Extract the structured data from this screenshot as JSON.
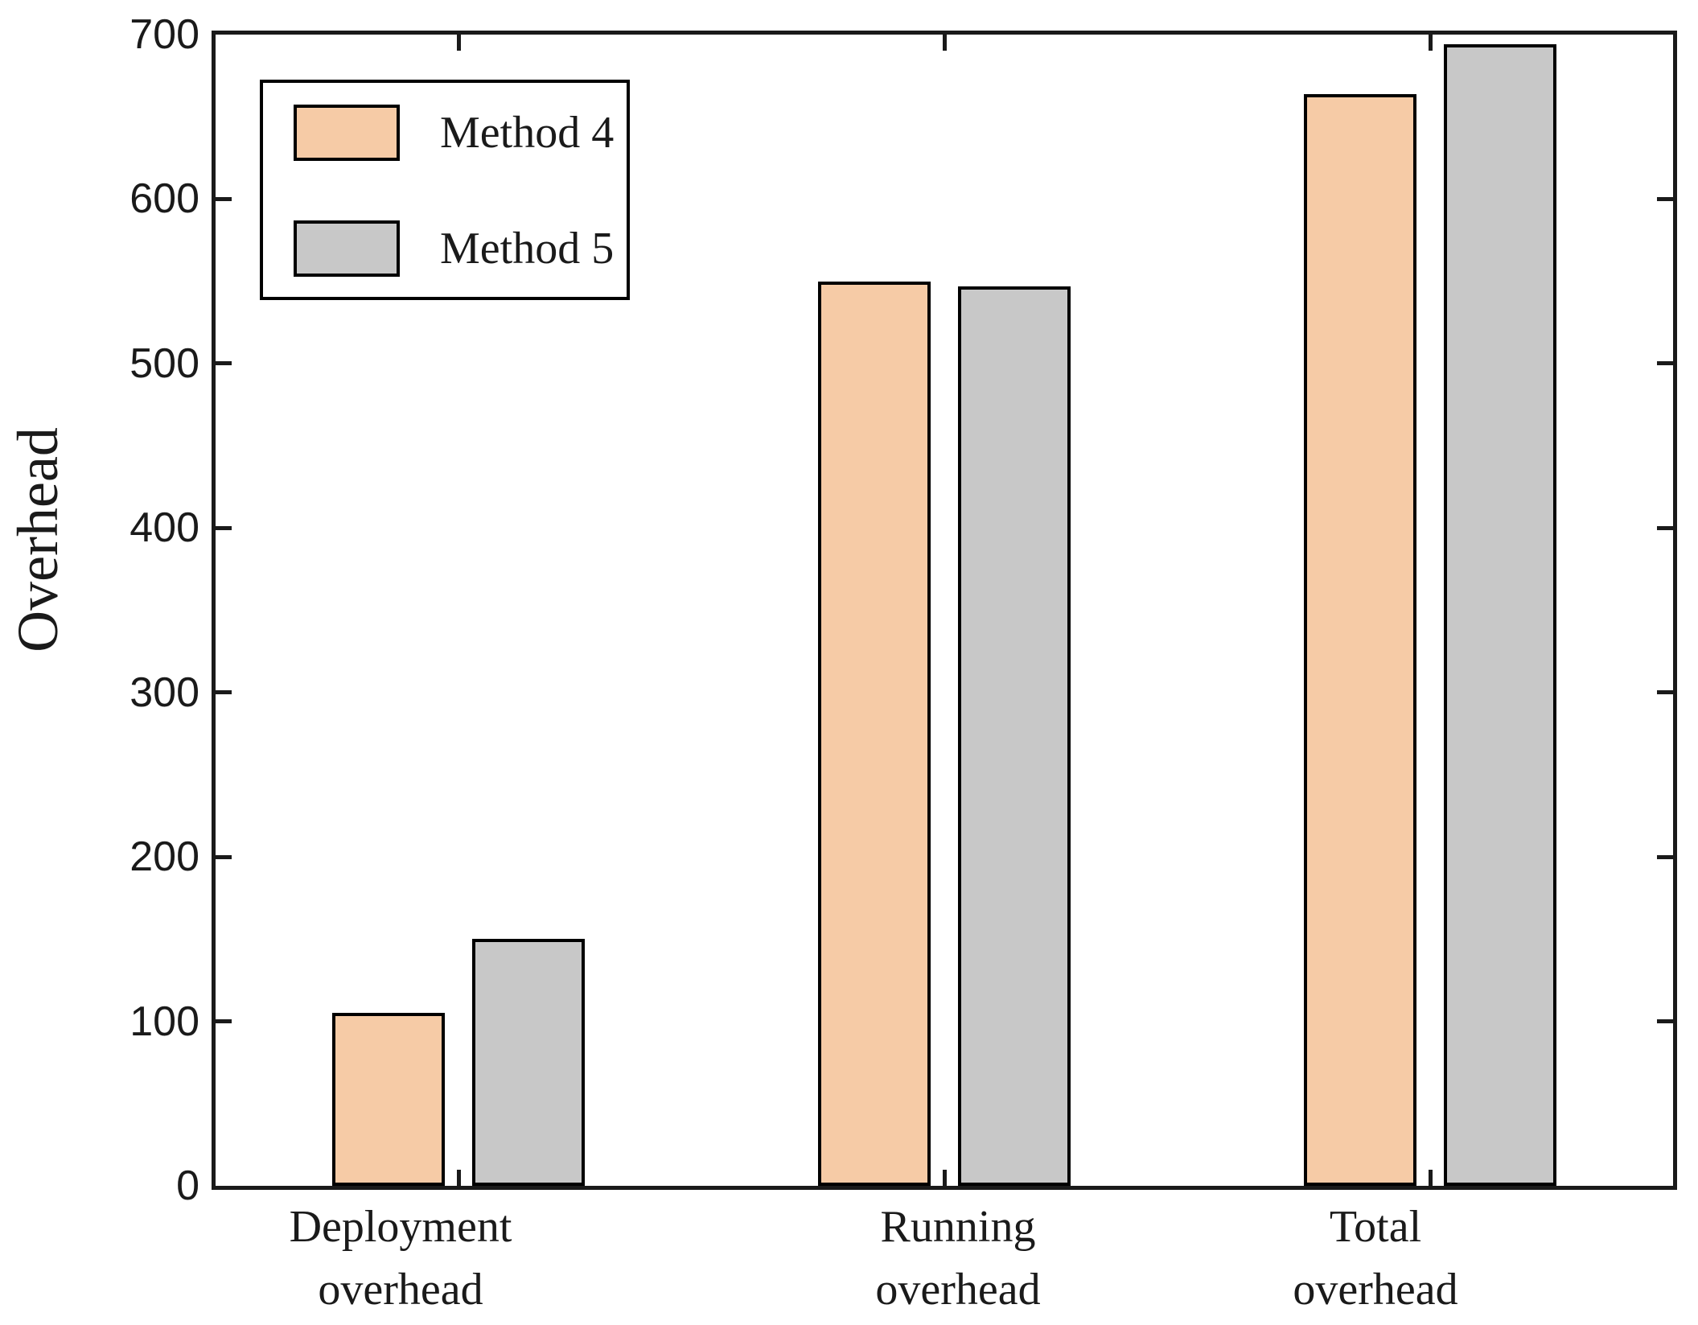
{
  "chart_data": {
    "type": "bar",
    "title": "",
    "categories": [
      "Deployment\noverhead",
      "Running\noverhead",
      "Total\noverhead"
    ],
    "series": [
      {
        "name": "Method 4",
        "color": "#F6CBA6",
        "values": [
          105,
          550,
          664
        ]
      },
      {
        "name": "Method 5",
        "color": "#C8C8C8",
        "values": [
          150,
          547,
          694
        ]
      }
    ],
    "xlabel": "",
    "ylabel": "Overhead",
    "ylim": [
      0,
      700
    ],
    "yticks": [
      0,
      100,
      200,
      300,
      400,
      500,
      600,
      700
    ],
    "grid": false,
    "legend_position": "top-left",
    "colors": {
      "axis": "#1A1A1A",
      "bar_edge": "#000000",
      "background": "#FFFFFF"
    }
  }
}
